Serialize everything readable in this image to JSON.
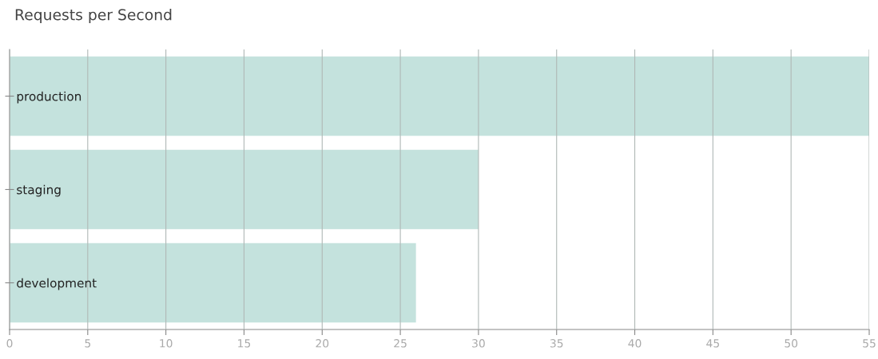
{
  "chart_data": {
    "type": "bar",
    "orientation": "horizontal",
    "title": "Requests per Second",
    "categories": [
      "production",
      "staging",
      "development"
    ],
    "values": [
      55,
      30,
      26
    ],
    "color": "#c4e2dd",
    "xlim": [
      0,
      55
    ],
    "xticks": [
      0,
      5,
      10,
      15,
      20,
      25,
      30,
      35,
      40,
      45,
      50,
      55
    ],
    "grid": "x",
    "legend": false
  }
}
